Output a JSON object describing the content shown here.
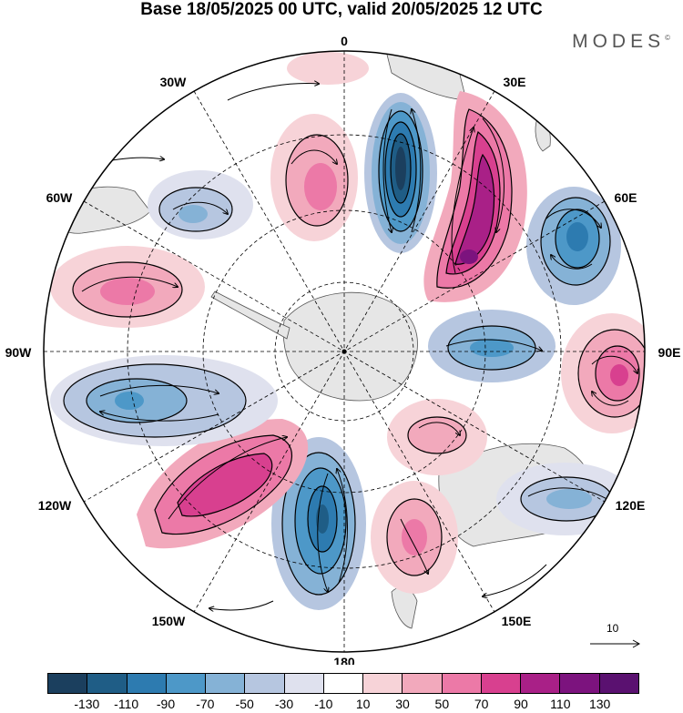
{
  "title": "Base 18/05/2025 00 UTC, valid 20/05/2025 12 UTC",
  "brand": {
    "name": "MODES",
    "mark": "©"
  },
  "longitude_labels": {
    "lon_0": "0",
    "lon_30e": "30E",
    "lon_60e": "60E",
    "lon_90e": "90E",
    "lon_120e": "120E",
    "lon_150e": "150E",
    "lon_180": "180",
    "lon_150w": "150W",
    "lon_120w": "120W",
    "lon_90w": "90W",
    "lon_60w": "60W",
    "lon_30w": "30W"
  },
  "reference_vector": {
    "label": "10"
  },
  "colorbar": {
    "tick_labels": [
      "-130",
      "-110",
      "-90",
      "-70",
      "-50",
      "-30",
      "-10",
      "10",
      "30",
      "50",
      "70",
      "90",
      "110",
      "130"
    ],
    "colors": [
      "#1b3f5e",
      "#1f5d86",
      "#2d7bb0",
      "#4d98c8",
      "#85b2d6",
      "#b6c6e0",
      "#dfe1ee",
      "#ffffff",
      "#f7d3d8",
      "#f2a9bc",
      "#ec79a7",
      "#d8408f",
      "#a92087",
      "#7c137e",
      "#5a1170"
    ]
  },
  "map": {
    "projection": "south-polar-stereographic",
    "colors": {
      "land": "#e6e6e6",
      "background": "#ffffff"
    }
  }
}
